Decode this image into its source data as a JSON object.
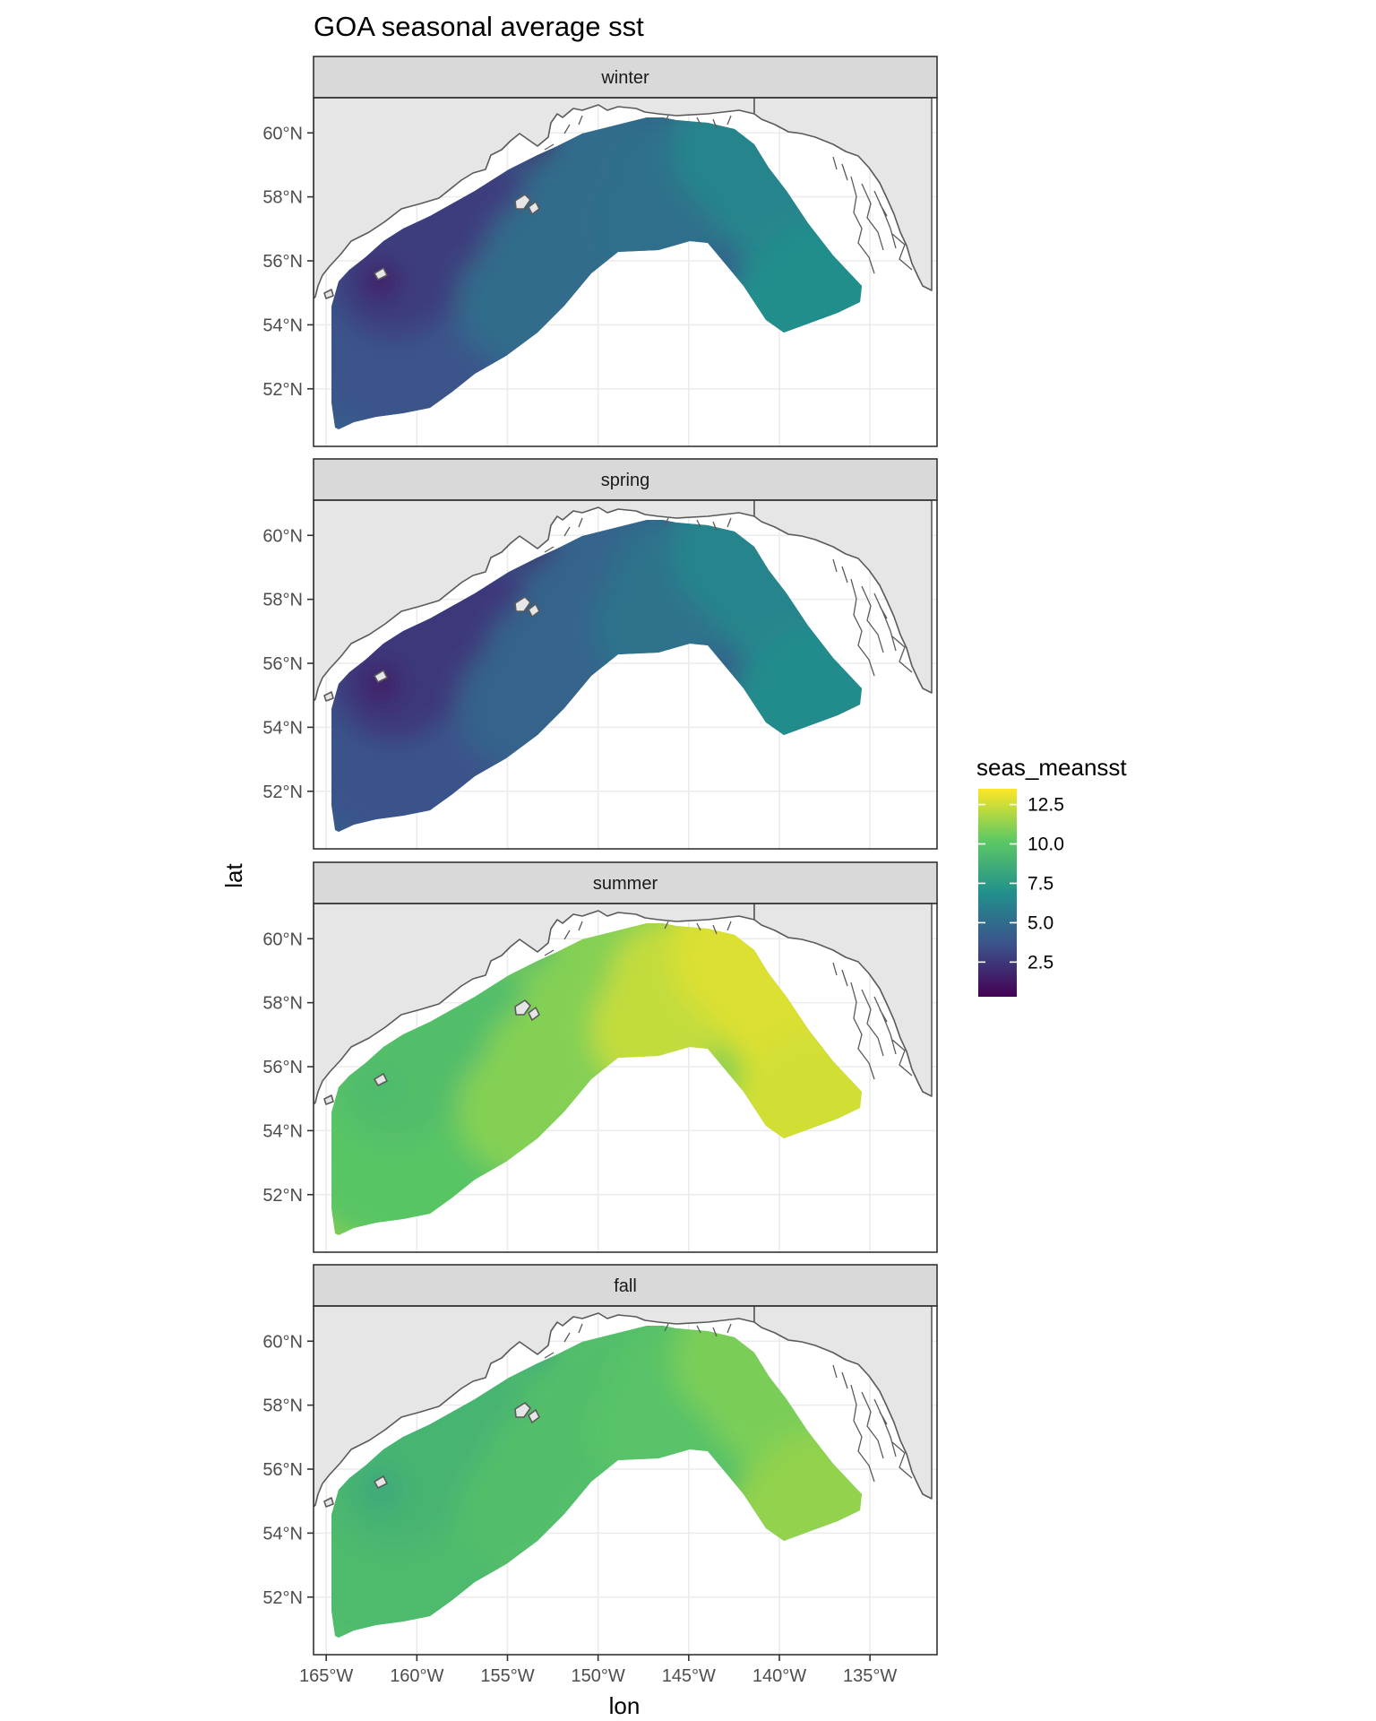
{
  "chart_data": {
    "type": "heatmap",
    "title": "GOA seasonal average sst",
    "xlabel": "lon",
    "ylabel": "lat",
    "x_ticks": [
      "165°W",
      "160°W",
      "155°W",
      "150°W",
      "145°W",
      "140°W",
      "135°W"
    ],
    "x_tick_values": [
      -165,
      -160,
      -155,
      -150,
      -145,
      -140,
      -135
    ],
    "y_ticks": [
      "52°N",
      "54°N",
      "56°N",
      "58°N",
      "60°N"
    ],
    "y_tick_values": [
      52,
      54,
      56,
      58,
      60
    ],
    "xlim": [
      -165.7,
      -131.3
    ],
    "ylim": [
      50.2,
      61.1
    ],
    "grid": true,
    "facets": [
      "winter",
      "spring",
      "summer",
      "fall"
    ],
    "legend": {
      "title": "seas_meansst",
      "position": "right",
      "labels": [
        "12.5",
        "10.0",
        "7.5",
        "5.0",
        "2.5"
      ],
      "label_values": [
        12.5,
        10.0,
        7.5,
        5.0,
        2.5
      ],
      "range": [
        0.3,
        13.5
      ],
      "colors": [
        "#440154",
        "#3b528b",
        "#21908c",
        "#5dc863",
        "#fde725"
      ]
    },
    "series": [
      {
        "name": "winter",
        "values": {
          "west": 3.7,
          "shelf_west": 2.8,
          "nw_bay": 1.5,
          "central": 5.0,
          "gulf_center": 5.2,
          "east": 6.3,
          "southeast": 6.8
        }
      },
      {
        "name": "spring",
        "values": {
          "west": 3.6,
          "shelf_west": 2.6,
          "nw_bay": 1.4,
          "central": 4.5,
          "gulf_center": 5.3,
          "east": 6.3,
          "southeast": 6.7
        }
      },
      {
        "name": "summer",
        "values": {
          "west": 10.0,
          "shelf_west": 9.6,
          "nw_bay": 9.4,
          "central": 11.0,
          "gulf_center": 12.3,
          "east": 12.8,
          "southeast": 12.6
        }
      },
      {
        "name": "fall",
        "values": {
          "west": 9.4,
          "shelf_west": 9.0,
          "nw_bay": 8.3,
          "central": 9.6,
          "gulf_center": 9.9,
          "east": 10.8,
          "southeast": 11.3
        }
      }
    ]
  }
}
